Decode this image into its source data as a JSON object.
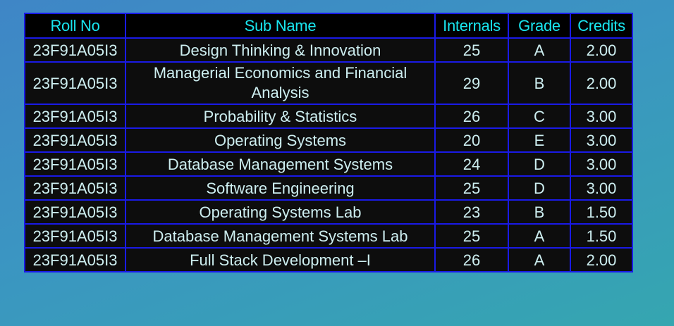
{
  "colors": {
    "header_text": "#19e6f0",
    "cell_text": "#cdeef0",
    "border": "#1a1ae6",
    "table_bg": "#0d0d0d"
  },
  "table": {
    "headers": [
      "Roll No",
      "Sub Name",
      "Internals",
      "Grade",
      "Credits"
    ],
    "rows": [
      {
        "roll": "23F91A05I3",
        "subject": "Design Thinking & Innovation",
        "internals": "25",
        "grade": "A",
        "credits": "2.00"
      },
      {
        "roll": "23F91A05I3",
        "subject": "Managerial Economics and Financial Analysis",
        "internals": "29",
        "grade": "B",
        "credits": "2.00"
      },
      {
        "roll": "23F91A05I3",
        "subject": "Probability & Statistics",
        "internals": "26",
        "grade": "C",
        "credits": "3.00"
      },
      {
        "roll": "23F91A05I3",
        "subject": "Operating Systems",
        "internals": "20",
        "grade": "E",
        "credits": "3.00"
      },
      {
        "roll": "23F91A05I3",
        "subject": "Database Management Systems",
        "internals": "24",
        "grade": "D",
        "credits": "3.00"
      },
      {
        "roll": "23F91A05I3",
        "subject": "Software Engineering",
        "internals": "25",
        "grade": "D",
        "credits": "3.00"
      },
      {
        "roll": "23F91A05I3",
        "subject": "Operating Systems Lab",
        "internals": "23",
        "grade": "B",
        "credits": "1.50"
      },
      {
        "roll": "23F91A05I3",
        "subject": "Database Management Systems Lab",
        "internals": "25",
        "grade": "A",
        "credits": "1.50"
      },
      {
        "roll": "23F91A05I3",
        "subject": "Full Stack Development –I",
        "internals": "26",
        "grade": "A",
        "credits": "2.00"
      }
    ]
  }
}
